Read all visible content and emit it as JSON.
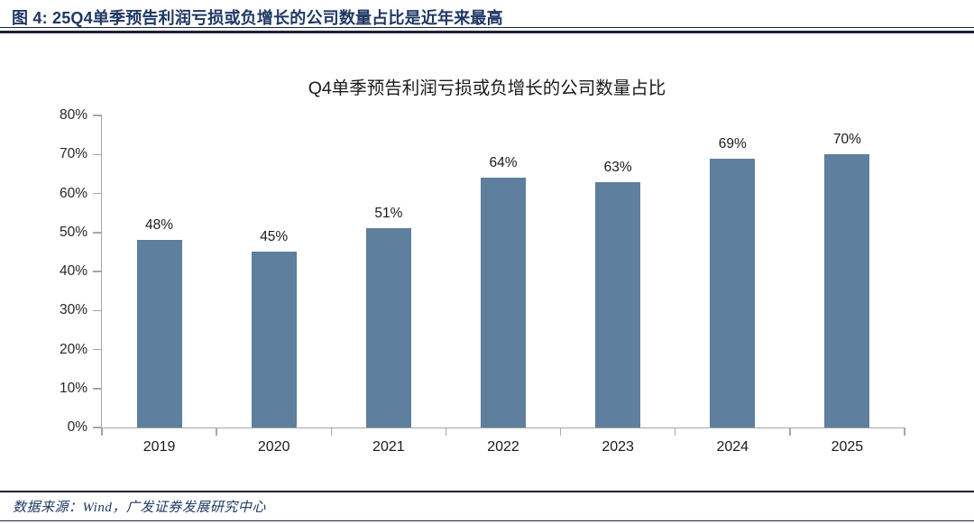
{
  "page": {
    "header_title": "图 4:  25Q4单季预告利润亏损或负增长的公司数量占比是近年来最高",
    "source_note": "数据来源：Wind，广发证券发展研究中心"
  },
  "chart_data": {
    "type": "bar",
    "title": "Q4单季预告利润亏损或负增长的公司数量占比",
    "categories": [
      "2019",
      "2020",
      "2021",
      "2022",
      "2023",
      "2024",
      "2025"
    ],
    "values": [
      48,
      45,
      51,
      64,
      63,
      69,
      70
    ],
    "data_labels": [
      "48%",
      "45%",
      "51%",
      "64%",
      "63%",
      "69%",
      "70%"
    ],
    "xlabel": "",
    "ylabel": "",
    "ylim": [
      0,
      80
    ],
    "ytick_step": 10,
    "ytick_labels": [
      "0%",
      "10%",
      "20%",
      "30%",
      "40%",
      "50%",
      "60%",
      "70%",
      "80%"
    ],
    "grid": false,
    "legend_position": "none",
    "bar_color": "#5E7F9D",
    "axis_color": "#A6A6A6"
  },
  "colors": {
    "header_text": "#1F3864",
    "rule": "#1B2437",
    "chart_title_text": "#1A1A1A",
    "source_text": "#1F3864",
    "background": "#FFFFFF"
  }
}
